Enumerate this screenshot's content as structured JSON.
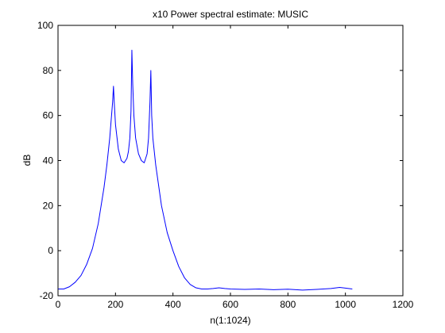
{
  "chart_data": {
    "type": "line",
    "title": "x10 Power spectral estimate: MUSIC",
    "xlabel": "n(1:1024)",
    "ylabel": "dB",
    "xlim": [
      0,
      1200
    ],
    "ylim": [
      -20,
      100
    ],
    "xticks": [
      0,
      200,
      400,
      600,
      800,
      1000,
      1200
    ],
    "yticks": [
      -20,
      0,
      20,
      40,
      60,
      80,
      100
    ],
    "grid": false,
    "line_color": "#0000ff",
    "series": [
      {
        "name": "",
        "x": [
          1,
          20,
          40,
          60,
          80,
          100,
          120,
          140,
          160,
          170,
          180,
          185,
          190,
          193,
          196,
          200,
          210,
          220,
          230,
          240,
          245,
          250,
          254,
          257,
          260,
          264,
          270,
          280,
          290,
          300,
          310,
          315,
          320,
          323,
          326,
          330,
          340,
          360,
          380,
          400,
          420,
          440,
          460,
          480,
          500,
          520,
          540,
          560,
          580,
          600,
          650,
          700,
          750,
          800,
          850,
          900,
          950,
          980,
          1000,
          1024
        ],
        "y": [
          -17,
          -17,
          -16,
          -14,
          -11,
          -6,
          1,
          12,
          28,
          38,
          50,
          58,
          66,
          73,
          65,
          56,
          45,
          40,
          39,
          41,
          44,
          50,
          62,
          89,
          74,
          60,
          50,
          43,
          40,
          39,
          43,
          50,
          66,
          80,
          60,
          50,
          38,
          20,
          8,
          0,
          -7,
          -12,
          -15,
          -16.5,
          -17,
          -17,
          -16.8,
          -16.5,
          -16.8,
          -17,
          -17.2,
          -17,
          -17.3,
          -17.1,
          -17.5,
          -17.2,
          -16.8,
          -16.3,
          -16.6,
          -17
        ]
      }
    ]
  }
}
